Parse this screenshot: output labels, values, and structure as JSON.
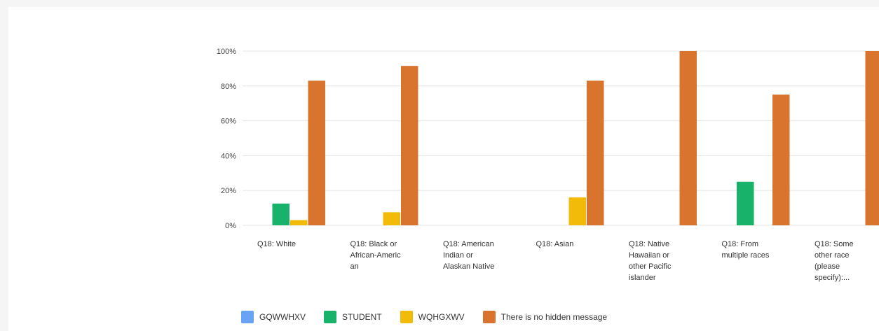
{
  "chart_data": {
    "type": "bar",
    "title": "",
    "xlabel": "",
    "ylabel": "",
    "ylim": [
      0,
      100
    ],
    "yticks": [
      "0%",
      "20%",
      "40%",
      "60%",
      "80%",
      "100%"
    ],
    "categories": [
      [
        "Q18: White"
      ],
      [
        "Q18: Black or",
        "African-Americ",
        "an"
      ],
      [
        "Q18: American",
        "Indian or",
        "Alaskan Native"
      ],
      [
        "Q18: Asian"
      ],
      [
        "Q18: Native",
        "Hawaiian or",
        "other Pacific",
        "islander"
      ],
      [
        "Q18: From",
        "multiple races"
      ],
      [
        "Q18: Some",
        "other race",
        "(please",
        "specify):..."
      ]
    ],
    "series": [
      {
        "name": "GQWWHXV",
        "color": "#6aa2f5",
        "values": [
          0,
          0,
          0,
          0,
          0,
          0,
          0
        ]
      },
      {
        "name": "STUDENT",
        "color": "#19b26b",
        "values": [
          12.5,
          0,
          0,
          0,
          0,
          25,
          0
        ]
      },
      {
        "name": "WQHGXWV",
        "color": "#f2bb0a",
        "values": [
          3,
          7.5,
          0,
          16,
          0,
          0,
          0
        ]
      },
      {
        "name": "There is no hidden message",
        "color": "#d8742e",
        "values": [
          83,
          91.5,
          0,
          83,
          100,
          75,
          100
        ]
      }
    ],
    "grid": true,
    "legend_position": "bottom"
  }
}
